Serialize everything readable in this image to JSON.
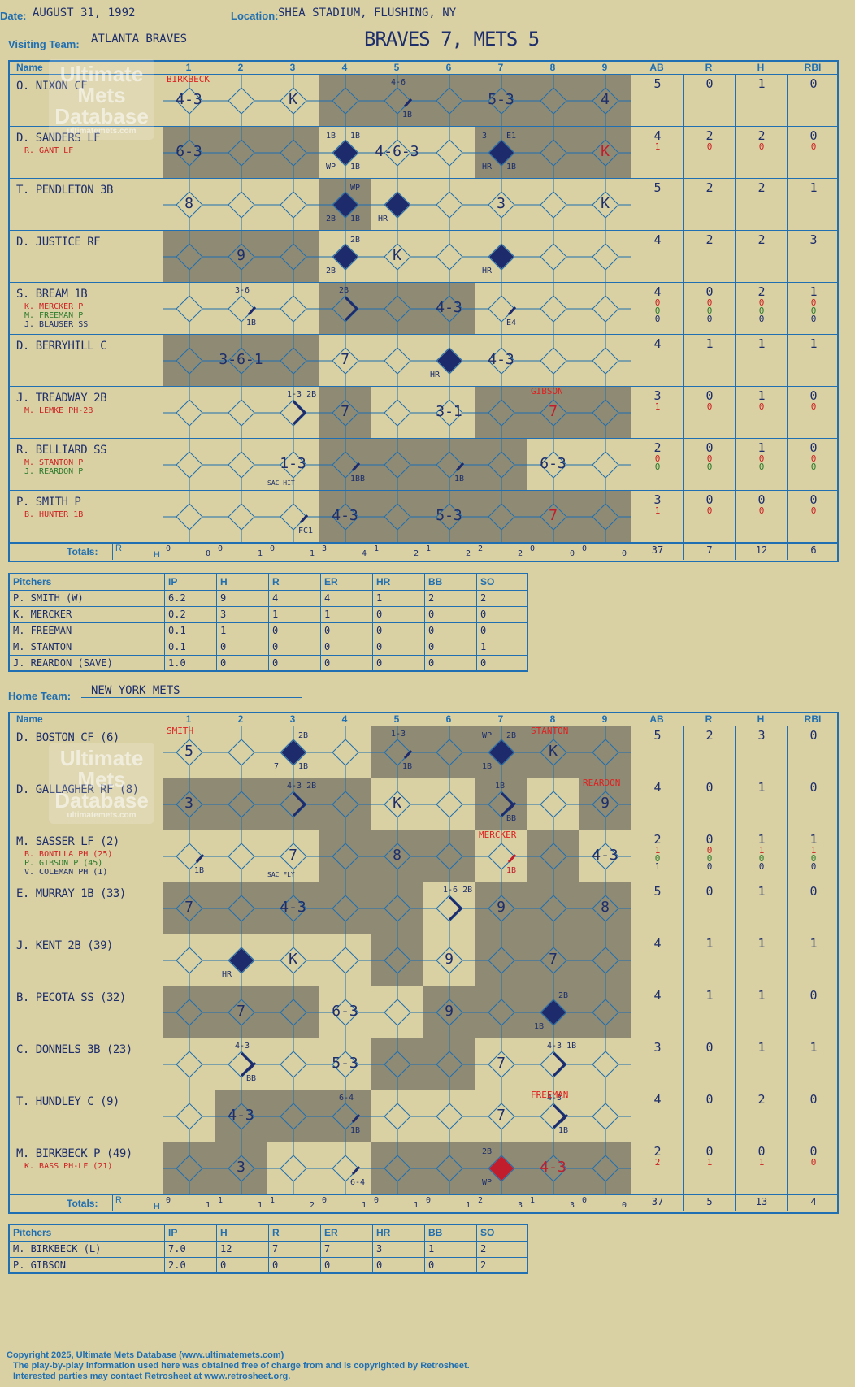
{
  "header": {
    "date_label": "Date:",
    "date": "AUGUST 31, 1992",
    "location_label": "Location:",
    "location": "SHEA STADIUM, FLUSHING, NY",
    "visiting_label": "Visiting Team:",
    "visiting_team": "ATLANTA BRAVES",
    "title": "BRAVES 7, METS 5",
    "home_label": "Home Team:",
    "home_team": "NEW YORK METS"
  },
  "logo": {
    "line1": "Ultimate",
    "line2": "Mets",
    "line3": "Database",
    "url": "ultimatemets.com"
  },
  "columns": {
    "name": "Name",
    "innings": [
      "1",
      "2",
      "3",
      "4",
      "5",
      "6",
      "7",
      "8",
      "9"
    ],
    "stats": [
      "AB",
      "R",
      "H",
      "RBI"
    ],
    "totals": "Totals:",
    "r": "R",
    "h": "H"
  },
  "pitch_cols": [
    "Pitchers",
    "IP",
    "H",
    "R",
    "ER",
    "HR",
    "BB",
    "SO"
  ],
  "visitors": {
    "shade": [
      [
        1,
        3,
        5
      ],
      [
        1,
        3,
        5
      ],
      [
        1,
        3,
        5
      ],
      [
        0,
        2,
        4,
        6,
        7,
        8
      ],
      [
        0,
        4,
        7,
        8
      ],
      [
        0,
        4,
        7,
        8
      ],
      [
        0,
        1,
        6,
        7,
        8
      ],
      [
        0,
        1,
        6,
        8
      ],
      [
        0,
        1,
        6,
        8
      ]
    ],
    "rows": [
      {
        "name": "O. NIXON CF",
        "subs": [],
        "ab": "5",
        "r": "0",
        "h": "1",
        "rbi": "0",
        "ab2": [],
        "r2": [],
        "h2": [],
        "rbi2": [],
        "cells": [
          {
            "i": 0,
            "txt": "4-3",
            "pitch": "BIRKBECK"
          },
          {
            "i": 2,
            "txt": "K"
          },
          {
            "i": 4,
            "txt": "",
            "note": "4-6",
            "line": "1B"
          },
          {
            "i": 6,
            "txt": "5-3"
          },
          {
            "i": 8,
            "txt": "4"
          }
        ]
      },
      {
        "name": "D. SANDERS LF",
        "subs": [
          {
            "t": "R. GANT LF",
            "c": "#c22"
          }
        ],
        "ab": "4",
        "r": "2",
        "h": "2",
        "rbi": "0",
        "ab2": [
          "1"
        ],
        "r2": [
          "0"
        ],
        "h2": [
          "0"
        ],
        "rbi2": [
          "0"
        ],
        "cells": [
          {
            "i": 0,
            "txt": "6-3"
          },
          {
            "i": 3,
            "txt": "",
            "diamond": true,
            "n1": "1B",
            "n2": "1B",
            "n3": "WP",
            "n4": "1B"
          },
          {
            "i": 4,
            "txt": "4-6-3"
          },
          {
            "i": 6,
            "txt": "",
            "diamond": true,
            "n1": "3",
            "n2": "E1",
            "n3": "HR",
            "n4": "1B"
          },
          {
            "i": 8,
            "txt": "K",
            "red": true
          }
        ]
      },
      {
        "name": "T. PENDLETON 3B",
        "subs": [],
        "ab": "5",
        "r": "2",
        "h": "2",
        "rbi": "1",
        "ab2": [],
        "r2": [],
        "h2": [],
        "rbi2": [],
        "cells": [
          {
            "i": 0,
            "txt": "8"
          },
          {
            "i": 3,
            "txt": "",
            "diamond": true,
            "n2": "WP",
            "n3": "2B",
            "n4": "1B"
          },
          {
            "i": 4,
            "txt": "",
            "diamond": true,
            "n3": "HR"
          },
          {
            "i": 6,
            "txt": "3"
          },
          {
            "i": 8,
            "txt": "K"
          }
        ]
      },
      {
        "name": "D. JUSTICE RF",
        "subs": [],
        "ab": "4",
        "r": "2",
        "h": "2",
        "rbi": "3",
        "ab2": [],
        "r2": [],
        "h2": [],
        "rbi2": [],
        "cells": [
          {
            "i": 1,
            "txt": "9"
          },
          {
            "i": 3,
            "txt": "",
            "diamond": true,
            "n2": "2B",
            "n3": "2B"
          },
          {
            "i": 4,
            "txt": "K"
          },
          {
            "i": 6,
            "txt": "",
            "diamond": true,
            "n3": "HR"
          }
        ]
      },
      {
        "name": "S. BREAM 1B",
        "subs": [
          {
            "t": "K. MERCKER P",
            "c": "#c22"
          },
          {
            "t": "M. FREEMAN P",
            "c": "#2a7a2a"
          },
          {
            "t": "J. BLAUSER SS",
            "c": "#1d2e6b"
          }
        ],
        "ab": "4",
        "r": "0",
        "h": "2",
        "rbi": "1",
        "ab2": [
          "0",
          "0",
          "0"
        ],
        "r2": [
          "0",
          "0",
          "0"
        ],
        "h2": [
          "0",
          "0",
          "0"
        ],
        "rbi2": [
          "0",
          "0",
          "0"
        ],
        "cells": [
          {
            "i": 1,
            "txt": "",
            "note": "3-6",
            "line": "1B"
          },
          {
            "i": 3,
            "txt": "",
            "note": "2B",
            "line2": true
          },
          {
            "i": 5,
            "txt": "4-3"
          },
          {
            "i": 6,
            "txt": "",
            "line": "E4"
          }
        ]
      },
      {
        "name": "D. BERRYHILL C",
        "subs": [],
        "ab": "4",
        "r": "1",
        "h": "1",
        "rbi": "1",
        "ab2": [],
        "r2": [],
        "h2": [],
        "rbi2": [],
        "cells": [
          {
            "i": 1,
            "txt": "3-6-1"
          },
          {
            "i": 3,
            "txt": "7"
          },
          {
            "i": 5,
            "txt": "",
            "diamond": true,
            "n3": "HR"
          },
          {
            "i": 6,
            "txt": "4-3"
          }
        ]
      },
      {
        "name": "J. TREADWAY 2B",
        "subs": [
          {
            "t": "M. LEMKE PH-2B",
            "c": "#c22"
          }
        ],
        "ab": "3",
        "r": "0",
        "h": "1",
        "rbi": "0",
        "ab2": [
          "1"
        ],
        "r2": [
          "0"
        ],
        "h2": [
          "0"
        ],
        "rbi2": [
          "0"
        ],
        "cells": [
          {
            "i": 2,
            "txt": "",
            "note": "1-3 2B",
            "line2": true
          },
          {
            "i": 3,
            "txt": "7"
          },
          {
            "i": 5,
            "txt": "3-1"
          },
          {
            "i": 7,
            "txt": "7",
            "red": true,
            "pitch": "GIBSON"
          }
        ]
      },
      {
        "name": "R. BELLIARD SS",
        "subs": [
          {
            "t": "M. STANTON P",
            "c": "#c22"
          },
          {
            "t": "J. REARDON P",
            "c": "#2a7a2a"
          }
        ],
        "ab": "2",
        "r": "0",
        "h": "1",
        "rbi": "0",
        "ab2": [
          "0",
          "0"
        ],
        "r2": [
          "0",
          "0"
        ],
        "h2": [
          "0",
          "0"
        ],
        "rbi2": [
          "0",
          "0"
        ],
        "cells": [
          {
            "i": 2,
            "txt": "1-3",
            "low": "SAC HIT"
          },
          {
            "i": 3,
            "txt": "",
            "line": "1BB"
          },
          {
            "i": 5,
            "txt": "",
            "line": "1B"
          },
          {
            "i": 7,
            "txt": "6-3"
          }
        ]
      },
      {
        "name": "P. SMITH P",
        "subs": [
          {
            "t": "B. HUNTER 1B",
            "c": "#c22"
          }
        ],
        "ab": "3",
        "r": "0",
        "h": "0",
        "rbi": "0",
        "ab2": [
          "1"
        ],
        "r2": [
          "0"
        ],
        "h2": [
          "0"
        ],
        "rbi2": [
          "0"
        ],
        "cells": [
          {
            "i": 2,
            "txt": "",
            "line": "FC1"
          },
          {
            "i": 3,
            "txt": "4-3"
          },
          {
            "i": 5,
            "txt": "5-3"
          },
          {
            "i": 7,
            "txt": "7",
            "red": true
          }
        ]
      }
    ],
    "totals": [
      [
        "0",
        "0"
      ],
      [
        "0",
        "1"
      ],
      [
        "0",
        "1"
      ],
      [
        "3",
        "4"
      ],
      [
        "1",
        "2"
      ],
      [
        "1",
        "2"
      ],
      [
        "2",
        "2"
      ],
      [
        "0",
        "0"
      ],
      [
        "0",
        "0"
      ]
    ],
    "stat_totals": [
      "37",
      "7",
      "12",
      "6"
    ],
    "pitchers": [
      [
        "P. SMITH (W)",
        "6.2",
        "9",
        "4",
        "4",
        "1",
        "2",
        "2"
      ],
      [
        "K. MERCKER",
        "0.2",
        "3",
        "1",
        "1",
        "0",
        "0",
        "0"
      ],
      [
        "M. FREEMAN",
        "0.1",
        "1",
        "0",
        "0",
        "0",
        "0",
        "0"
      ],
      [
        "M. STANTON",
        "0.1",
        "0",
        "0",
        "0",
        "0",
        "0",
        "1"
      ],
      [
        "J. REARDON (SAVE)",
        "1.0",
        "0",
        "0",
        "0",
        "0",
        "0",
        "0"
      ]
    ]
  },
  "home": {
    "shade": [
      [
        1,
        3,
        5,
        8
      ],
      [
        1,
        3,
        5,
        7,
        8
      ],
      [
        1,
        3,
        5,
        7
      ],
      [
        1,
        2,
        3,
        7
      ],
      [
        0,
        2,
        3,
        4,
        6,
        8
      ],
      [
        0,
        2,
        5,
        6,
        8
      ],
      [
        0,
        1,
        3,
        4,
        5,
        8
      ],
      [
        0,
        2,
        3,
        4,
        5,
        8
      ],
      [
        0,
        1,
        3,
        4,
        5,
        8
      ]
    ],
    "rows": [
      {
        "name": "D. BOSTON CF (6)",
        "subs": [],
        "ab": "5",
        "r": "2",
        "h": "3",
        "rbi": "0",
        "ab2": [],
        "r2": [],
        "h2": [],
        "rbi2": [],
        "cells": [
          {
            "i": 0,
            "txt": "5",
            "pitch": "SMITH"
          },
          {
            "i": 2,
            "txt": "",
            "diamond": true,
            "n2": "2B",
            "n3": "7",
            "n4": "1B"
          },
          {
            "i": 4,
            "txt": "",
            "note": "1-3",
            "line": "1B"
          },
          {
            "i": 6,
            "txt": "",
            "diamond": true,
            "n1": "WP",
            "n2": "2B",
            "n3": "1B"
          },
          {
            "i": 7,
            "txt": "K",
            "pitch": "STANTON"
          }
        ]
      },
      {
        "name": "D. GALLAGHER RF (8)",
        "subs": [],
        "ab": "4",
        "r": "0",
        "h": "1",
        "rbi": "0",
        "ab2": [],
        "r2": [],
        "h2": [],
        "rbi2": [],
        "cells": [
          {
            "i": 0,
            "txt": "3"
          },
          {
            "i": 2,
            "txt": "",
            "note": "4-3 2B",
            "line2": true
          },
          {
            "i": 4,
            "txt": "K"
          },
          {
            "i": 6,
            "txt": "",
            "note": "1B",
            "line2": true,
            "line": "BB"
          },
          {
            "i": 8,
            "txt": "9",
            "pitch": "REARDON"
          }
        ]
      },
      {
        "name": "M. SASSER LF (2)",
        "subs": [
          {
            "t": "B. BONILLA PH (25)",
            "c": "#c22"
          },
          {
            "t": "P. GIBSON P (45)",
            "c": "#2a7a2a"
          },
          {
            "t": "V. COLEMAN PH (1)",
            "c": "#1d2e6b"
          }
        ],
        "ab": "2",
        "r": "0",
        "h": "1",
        "rbi": "1",
        "ab2": [
          "1",
          "0",
          "1"
        ],
        "r2": [
          "0",
          "0",
          "0"
        ],
        "h2": [
          "1",
          "0",
          "0"
        ],
        "rbi2": [
          "1",
          "0",
          "0"
        ],
        "cells": [
          {
            "i": 0,
            "txt": "",
            "line": "1B"
          },
          {
            "i": 2,
            "txt": "7",
            "low": "SAC FLY"
          },
          {
            "i": 4,
            "txt": "8"
          },
          {
            "i": 6,
            "txt": "",
            "line": "1B",
            "redline": true,
            "pitch": "MERCKER"
          },
          {
            "i": 8,
            "txt": "4-3"
          }
        ]
      },
      {
        "name": "E. MURRAY 1B (33)",
        "subs": [],
        "ab": "5",
        "r": "0",
        "h": "1",
        "rbi": "0",
        "ab2": [],
        "r2": [],
        "h2": [],
        "rbi2": [],
        "cells": [
          {
            "i": 0,
            "txt": "7"
          },
          {
            "i": 2,
            "txt": "4-3"
          },
          {
            "i": 5,
            "txt": "",
            "note": "1-6 2B",
            "line2": true
          },
          {
            "i": 6,
            "txt": "9"
          },
          {
            "i": 8,
            "txt": "8"
          }
        ]
      },
      {
        "name": "J. KENT 2B (39)",
        "subs": [],
        "ab": "4",
        "r": "1",
        "h": "1",
        "rbi": "1",
        "ab2": [],
        "r2": [],
        "h2": [],
        "rbi2": [],
        "cells": [
          {
            "i": 1,
            "txt": "",
            "diamond": true,
            "n3": "HR"
          },
          {
            "i": 2,
            "txt": "K"
          },
          {
            "i": 5,
            "txt": "9"
          },
          {
            "i": 7,
            "txt": "7"
          }
        ]
      },
      {
        "name": "B. PECOTA SS (32)",
        "subs": [],
        "ab": "4",
        "r": "1",
        "h": "1",
        "rbi": "0",
        "ab2": [],
        "r2": [],
        "h2": [],
        "rbi2": [],
        "cells": [
          {
            "i": 1,
            "txt": "7"
          },
          {
            "i": 3,
            "txt": "6-3"
          },
          {
            "i": 5,
            "txt": "9"
          },
          {
            "i": 7,
            "txt": "",
            "diamond": true,
            "n2": "2B",
            "n3": "1B"
          }
        ]
      },
      {
        "name": "C. DONNELS 3B (23)",
        "subs": [],
        "ab": "3",
        "r": "0",
        "h": "1",
        "rbi": "1",
        "ab2": [],
        "r2": [],
        "h2": [],
        "rbi2": [],
        "cells": [
          {
            "i": 1,
            "txt": "",
            "note": "4-3",
            "line2": true,
            "line": "BB"
          },
          {
            "i": 3,
            "txt": "5-3"
          },
          {
            "i": 6,
            "txt": "7"
          },
          {
            "i": 7,
            "txt": "",
            "note": "4-3 1B",
            "line2": true
          }
        ]
      },
      {
        "name": "T. HUNDLEY C (9)",
        "subs": [],
        "ab": "4",
        "r": "0",
        "h": "2",
        "rbi": "0",
        "ab2": [],
        "r2": [],
        "h2": [],
        "rbi2": [],
        "cells": [
          {
            "i": 1,
            "txt": "4-3"
          },
          {
            "i": 3,
            "txt": "",
            "note": "6-4",
            "line": "1B"
          },
          {
            "i": 6,
            "txt": "7"
          },
          {
            "i": 7,
            "txt": "",
            "note": "4-3",
            "line2": true,
            "line": "1B",
            "pitch": "FREEMAN"
          }
        ]
      },
      {
        "name": "M. BIRKBECK P (49)",
        "subs": [
          {
            "t": "K. BASS PH-LF (21)",
            "c": "#c22"
          }
        ],
        "ab": "2",
        "r": "0",
        "h": "0",
        "rbi": "0",
        "ab2": [
          "2"
        ],
        "r2": [
          "1"
        ],
        "h2": [
          "1"
        ],
        "rbi2": [
          "0"
        ],
        "cells": [
          {
            "i": 1,
            "txt": "3"
          },
          {
            "i": 3,
            "txt": "",
            "line": "6-4"
          },
          {
            "i": 6,
            "txt": "",
            "diamond": true,
            "reddiamond": true,
            "n1": "2B",
            "n3": "WP"
          },
          {
            "i": 7,
            "txt": "4-3",
            "red": true
          }
        ]
      }
    ],
    "totals": [
      [
        "0",
        "1"
      ],
      [
        "1",
        "1"
      ],
      [
        "1",
        "2"
      ],
      [
        "0",
        "1"
      ],
      [
        "0",
        "1"
      ],
      [
        "0",
        "1"
      ],
      [
        "2",
        "3"
      ],
      [
        "1",
        "3"
      ],
      [
        "0",
        "0"
      ]
    ],
    "stat_totals": [
      "37",
      "5",
      "13",
      "4"
    ],
    "pitchers": [
      [
        "M. BIRKBECK (L)",
        "7.0",
        "12",
        "7",
        "7",
        "3",
        "1",
        "2"
      ],
      [
        "P. GIBSON",
        "2.0",
        "0",
        "0",
        "0",
        "0",
        "0",
        "2"
      ]
    ]
  },
  "footer": {
    "copyright": "Copyright 2025, Ultimate Mets Database (www.ultimatemets.com)",
    "line2": "The play-by-play information used here was obtained free of charge from and is copyrighted by Retrosheet.",
    "line3": "Interested parties may contact Retrosheet at www.retrosheet.org."
  },
  "colors": {
    "bg": "#d9d0a3",
    "line": "#1f6fb2",
    "ink": "#1d2e6b",
    "shade": "#8e8a74",
    "red": "#d22"
  }
}
